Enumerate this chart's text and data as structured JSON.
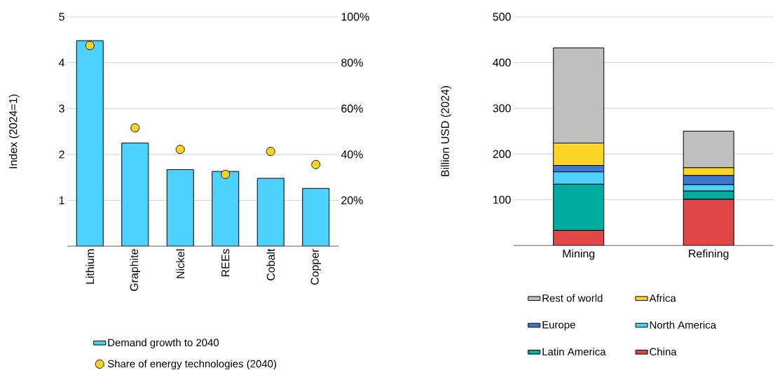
{
  "chart_data": [
    {
      "type": "bar",
      "categories": [
        "Lithium",
        "Graphite",
        "Nickel",
        "REEs",
        "Cobalt",
        "Copper"
      ],
      "ylabel": "Index (2024=1)",
      "ylim": [
        0,
        5
      ],
      "yticks": [
        1,
        2,
        3,
        4,
        5
      ],
      "y2lim": [
        0,
        100
      ],
      "y2ticks": [
        {
          "value": 20,
          "label": "20%"
        },
        {
          "value": 40,
          "label": "40%"
        },
        {
          "value": 60,
          "label": "60%"
        },
        {
          "value": 80,
          "label": "80%"
        },
        {
          "value": 100,
          "label": "100%"
        }
      ],
      "grid": "y",
      "legend": "bottom",
      "series": [
        {
          "name": "Demand growth to 2040",
          "color": "#4dd2ff",
          "values": [
            4.48,
            2.25,
            1.67,
            1.63,
            1.48,
            1.26
          ]
        },
        {
          "name": "Share of energy technologies (2040)",
          "type": "scatter",
          "axis": "y2",
          "color": "#fdd221",
          "values": [
            87.5,
            51.6,
            42.2,
            31.3,
            41.3,
            35.6
          ]
        }
      ]
    },
    {
      "type": "bar",
      "stacked": true,
      "categories": [
        "Mining",
        "Refining"
      ],
      "ylabel": "Billion USD (2024)",
      "ylim": [
        0,
        500
      ],
      "yticks": [
        100,
        200,
        300,
        400,
        500
      ],
      "grid": "y",
      "legend": "bottom",
      "series": [
        {
          "name": "China",
          "color": "#e04848",
          "values": [
            33,
            101
          ]
        },
        {
          "name": "Latin America",
          "color": "#00ab9f",
          "values": [
            101,
            18
          ]
        },
        {
          "name": "North America",
          "color": "#4dd2ff",
          "values": [
            27,
            14
          ]
        },
        {
          "name": "Europe",
          "color": "#3a78d4",
          "values": [
            14,
            20
          ]
        },
        {
          "name": "Africa",
          "color": "#fdd526",
          "values": [
            49,
            17
          ]
        },
        {
          "name": "Rest of world",
          "color": "#bfbfbf",
          "values": [
            208,
            80
          ]
        }
      ]
    }
  ]
}
